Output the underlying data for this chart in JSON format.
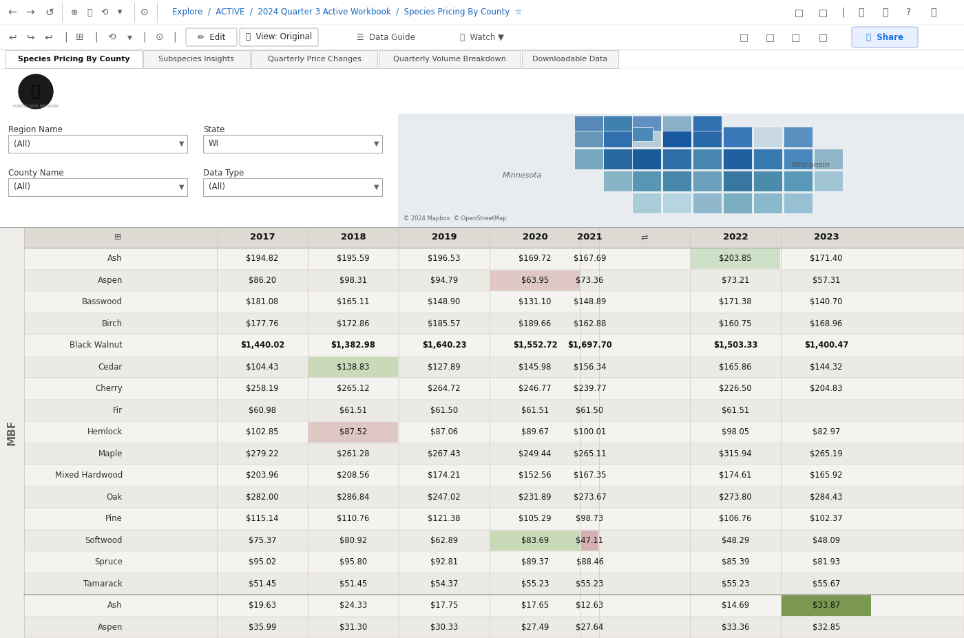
{
  "title": "Species Pricing by County",
  "header_bg": "#111111",
  "header_text_color": "#ffffff",
  "col_headers": [
    "2017",
    "2018",
    "2019",
    "2020",
    "2021",
    "2022",
    "2023"
  ],
  "side_label": "MBF",
  "rows": [
    {
      "species": "Ash",
      "vals": [
        "$194.82",
        "$195.59",
        "$196.53",
        "$169.72",
        "$167.69",
        "$203.85",
        "$171.40"
      ],
      "cell_colors": [
        "",
        "",
        "",
        "",
        "",
        "#cfe0c8",
        ""
      ]
    },
    {
      "species": "Aspen",
      "vals": [
        "$86.20",
        "$98.31",
        "$94.79",
        "$63.95",
        "$73.36",
        "$73.21",
        "$57.31"
      ],
      "cell_colors": [
        "",
        "",
        "",
        "#dfc8c4",
        "",
        "",
        ""
      ]
    },
    {
      "species": "Basswood",
      "vals": [
        "$181.08",
        "$165.11",
        "$148.90",
        "$131.10",
        "$148.89",
        "$171.38",
        "$140.70"
      ],
      "cell_colors": [
        "",
        "",
        "",
        "",
        "",
        "",
        ""
      ]
    },
    {
      "species": "Birch",
      "vals": [
        "$177.76",
        "$172.86",
        "$185.57",
        "$189.66",
        "$162.88",
        "$160.75",
        "$168.96"
      ],
      "cell_colors": [
        "",
        "",
        "",
        "",
        "",
        "",
        ""
      ]
    },
    {
      "species": "Black Walnut",
      "vals": [
        "$1,440.02",
        "$1,382.98",
        "$1,640.23",
        "$1,552.72",
        "$1,697.70",
        "$1,503.33",
        "$1,400.47"
      ],
      "cell_colors": [
        "",
        "",
        "",
        "",
        "",
        "",
        ""
      ]
    },
    {
      "species": "Cedar",
      "vals": [
        "$104.43",
        "$138.83",
        "$127.89",
        "$145.98",
        "$156.34",
        "$165.86",
        "$144.32"
      ],
      "cell_colors": [
        "",
        "#c8dab8",
        "",
        "",
        "",
        "",
        ""
      ]
    },
    {
      "species": "Cherry",
      "vals": [
        "$258.19",
        "$265.12",
        "$264.72",
        "$246.77",
        "$239.77",
        "$226.50",
        "$204.83"
      ],
      "cell_colors": [
        "",
        "",
        "",
        "",
        "",
        "",
        ""
      ]
    },
    {
      "species": "Fir",
      "vals": [
        "$60.98",
        "$61.51",
        "$61.50",
        "$61.51",
        "$61.50",
        "$61.51",
        ""
      ],
      "cell_colors": [
        "",
        "",
        "",
        "",
        "",
        "",
        ""
      ]
    },
    {
      "species": "Hemlock",
      "vals": [
        "$102.85",
        "$87.52",
        "$87.06",
        "$89.67",
        "$100.01",
        "$98.05",
        "$82.97"
      ],
      "cell_colors": [
        "",
        "#dfc8c4",
        "",
        "",
        "",
        "",
        ""
      ]
    },
    {
      "species": "Maple",
      "vals": [
        "$279.22",
        "$261.28",
        "$267.43",
        "$249.44",
        "$265.11",
        "$315.94",
        "$265.19"
      ],
      "cell_colors": [
        "",
        "",
        "",
        "",
        "",
        "",
        ""
      ]
    },
    {
      "species": "Mixed Hardwood",
      "vals": [
        "$203.96",
        "$208.56",
        "$174.21",
        "$152.56",
        "$167.35",
        "$174.61",
        "$165.92"
      ],
      "cell_colors": [
        "",
        "",
        "",
        "",
        "",
        "",
        ""
      ]
    },
    {
      "species": "Oak",
      "vals": [
        "$282.00",
        "$286.84",
        "$247.02",
        "$231.89",
        "$273.67",
        "$273.80",
        "$284.43"
      ],
      "cell_colors": [
        "",
        "",
        "",
        "",
        "",
        "",
        ""
      ]
    },
    {
      "species": "Pine",
      "vals": [
        "$115.14",
        "$110.76",
        "$121.38",
        "$105.29",
        "$98.73",
        "$106.76",
        "$102.37"
      ],
      "cell_colors": [
        "",
        "",
        "",
        "",
        "",
        "",
        ""
      ]
    },
    {
      "species": "Softwood",
      "vals": [
        "$75.37",
        "$80.92",
        "$62.89",
        "$83.69",
        "$47.11",
        "$48.29",
        "$48.09"
      ],
      "cell_colors": [
        "",
        "",
        "",
        "#c8dab8",
        "#d4b0b0",
        "",
        ""
      ]
    },
    {
      "species": "Spruce",
      "vals": [
        "$95.02",
        "$95.80",
        "$92.81",
        "$89.37",
        "$88.46",
        "$85.39",
        "$81.93"
      ],
      "cell_colors": [
        "",
        "",
        "",
        "",
        "",
        "",
        ""
      ]
    },
    {
      "species": "Tamarack",
      "vals": [
        "$51.45",
        "$51.45",
        "$54.37",
        "$55.23",
        "$55.23",
        "$55.23",
        "$55.67"
      ],
      "cell_colors": [
        "",
        "",
        "",
        "",
        "",
        "",
        ""
      ]
    },
    {
      "species": "Ash",
      "vals": [
        "$19.63",
        "$24.33",
        "$17.75",
        "$17.65",
        "$12.63",
        "$14.69",
        "$33.87"
      ],
      "cell_colors": [
        "",
        "",
        "",
        "",
        "",
        "",
        "#7a9850"
      ]
    },
    {
      "species": "Aspen",
      "vals": [
        "$35.99",
        "$31.30",
        "$30.33",
        "$27.49",
        "$27.64",
        "$33.36",
        "$32.85"
      ],
      "cell_colors": [
        "",
        "",
        "",
        "",
        "",
        "",
        ""
      ]
    }
  ],
  "nav_tabs": [
    "Species Pricing By County",
    "Subspecies Insights",
    "Quarterly Price Changes",
    "Quarterly Volume Breakdown",
    "Downloadable Data"
  ],
  "active_tab_idx": 0
}
